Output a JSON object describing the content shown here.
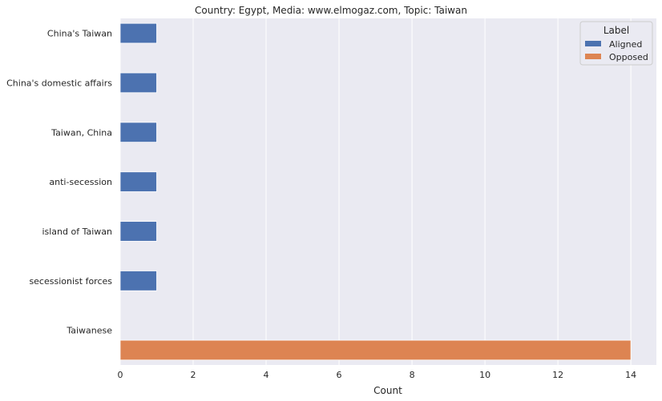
{
  "chart_data": {
    "type": "bar",
    "orientation": "horizontal",
    "title": "Country: Egypt, Media: www.elmogaz.com, Topic: Taiwan",
    "xlabel": "Count",
    "ylabel": "",
    "xlim": [
      0,
      14.7
    ],
    "xticks": [
      0,
      2,
      4,
      6,
      8,
      10,
      12,
      14
    ],
    "grid": true,
    "legend_placement": "top-right",
    "legend_title": "Label",
    "categories": [
      "China's Taiwan",
      "China's domestic affairs",
      "Taiwan, China",
      "anti-secession",
      "island of Taiwan",
      "secessionist forces",
      "Taiwanese"
    ],
    "series": [
      {
        "name": "Aligned",
        "color": "#4c72b0",
        "values": [
          1,
          1,
          1,
          1,
          1,
          1,
          null
        ]
      },
      {
        "name": "Opposed",
        "color": "#dd8452",
        "values": [
          null,
          null,
          null,
          null,
          null,
          null,
          14
        ]
      }
    ]
  },
  "colors": {
    "plot_background": "#eaeaf2",
    "grid": "#ffffff",
    "text": "#262626"
  }
}
